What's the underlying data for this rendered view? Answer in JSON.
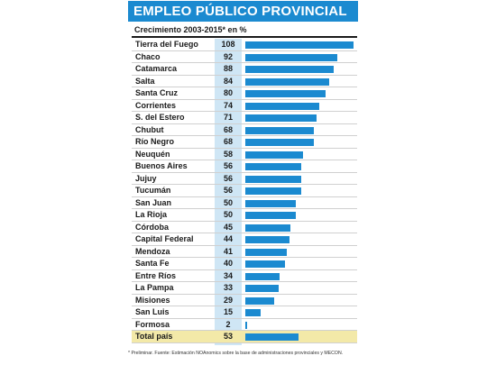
{
  "title": "EMPLEO PÚBLICO PROVINCIAL",
  "subtitle": "Crecimiento 2003-2015* en %",
  "footnote": "* Preliminar. Fuente: Estimación NOAnomics sobre la base de administraciones provinciales y MECON.",
  "colors": {
    "header_bg": "#1b8ad0",
    "bar": "#1b8ad0",
    "value_col_bg": "#cfe6f5",
    "total_row_bg": "#f3e9a8"
  },
  "chart_data": {
    "type": "bar",
    "orientation": "horizontal",
    "categories": [
      "Tierra del Fuego",
      "Chaco",
      "Catamarca",
      "Salta",
      "Santa Cruz",
      "Corrientes",
      "S. del Estero",
      "Chubut",
      "Río Negro",
      "Neuquén",
      "Buenos Aires",
      "Jujuy",
      "Tucumán",
      "San Juan",
      "La Rioja",
      "Córdoba",
      "Capital Federal",
      "Mendoza",
      "Santa Fe",
      "Entre Ríos",
      "La Pampa",
      "Misiones",
      "San Luis",
      "Formosa",
      "Total país"
    ],
    "values": [
      108,
      92,
      88,
      84,
      80,
      74,
      71,
      68,
      68,
      58,
      56,
      56,
      56,
      50,
      50,
      45,
      44,
      41,
      40,
      34,
      33,
      29,
      15,
      2,
      53
    ],
    "xlim": [
      0,
      108
    ]
  }
}
